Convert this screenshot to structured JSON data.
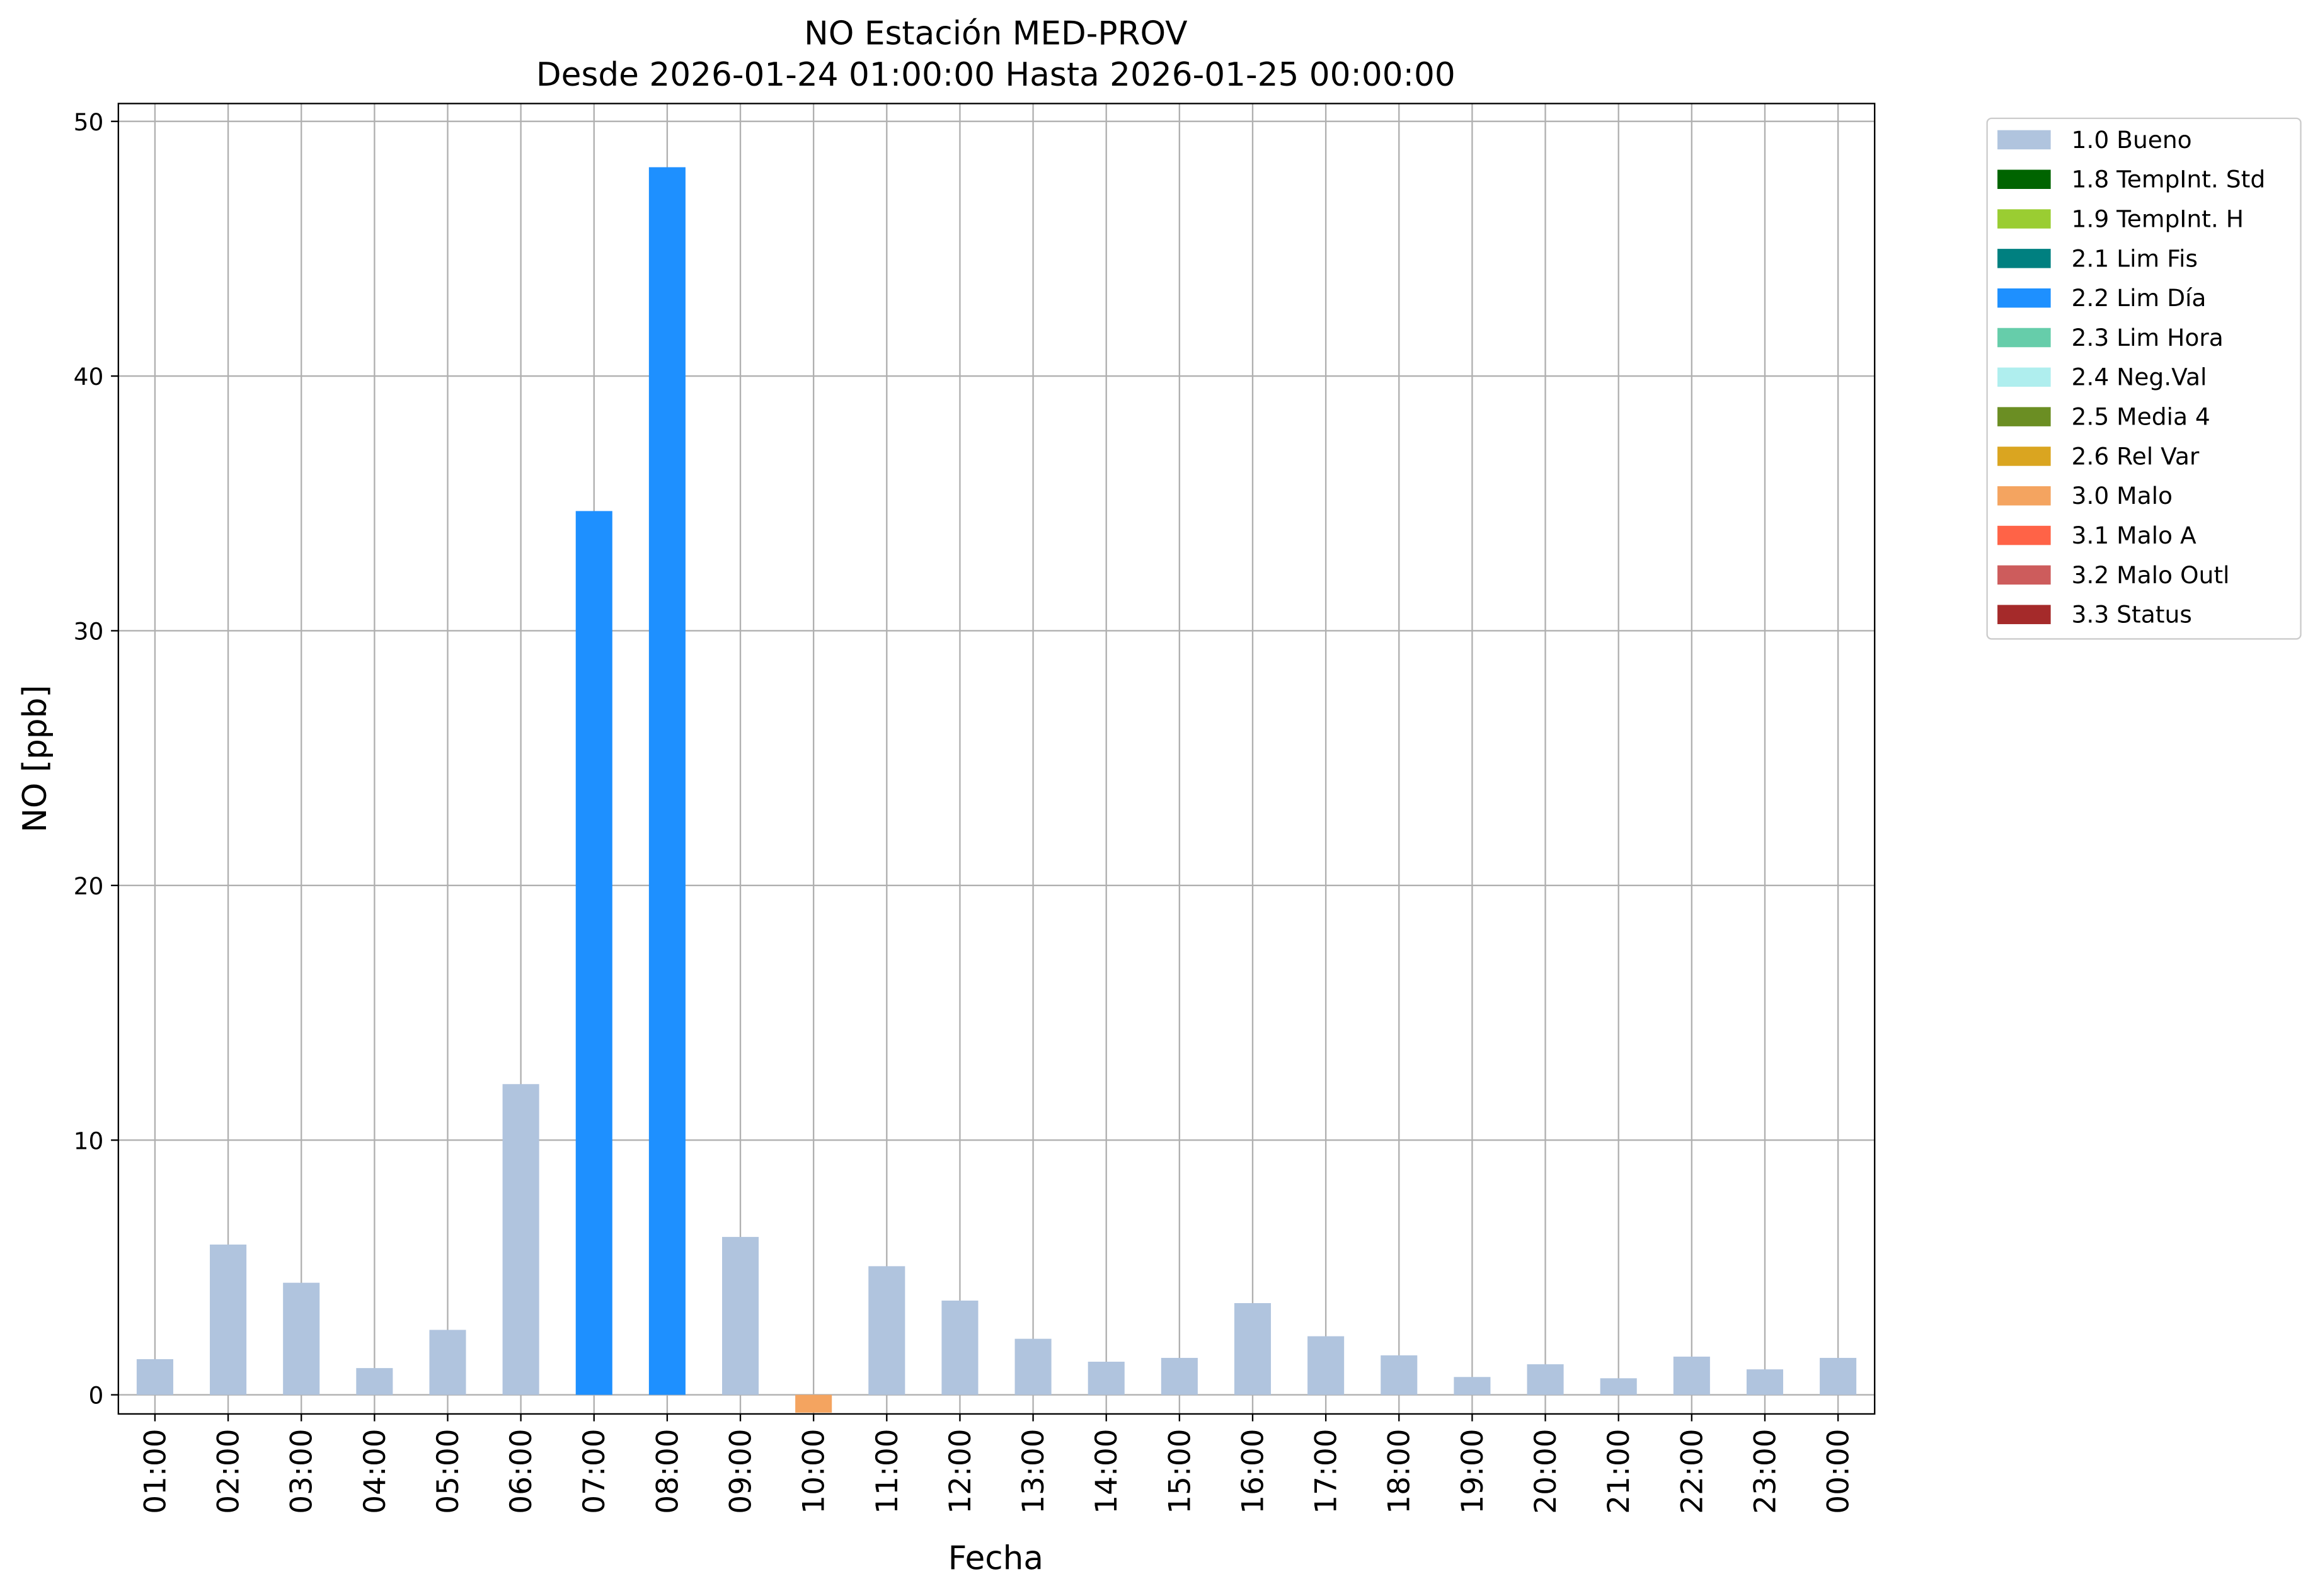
{
  "chart_data": {
    "type": "bar",
    "stacked": true,
    "title": "NO Estación MED-PROV",
    "subtitle": "Desde 2026-01-24 01:00:00 Hasta 2026-01-25 00:00:00",
    "x_label": "Fecha",
    "y_label": "NO [ppb]",
    "categories": [
      "01:00",
      "02:00",
      "03:00",
      "04:00",
      "05:00",
      "06:00",
      "07:00",
      "08:00",
      "09:00",
      "10:00",
      "11:00",
      "12:00",
      "13:00",
      "14:00",
      "15:00",
      "16:00",
      "17:00",
      "18:00",
      "19:00",
      "20:00",
      "21:00",
      "22:00",
      "23:00",
      "00:00"
    ],
    "series": [
      {
        "name": "1.0 Bueno",
        "color": "#b0c4de",
        "values": [
          1.4,
          5.9,
          4.4,
          1.05,
          2.55,
          12.2,
          null,
          null,
          6.2,
          null,
          5.05,
          3.7,
          2.2,
          1.3,
          1.45,
          3.6,
          2.3,
          1.55,
          0.7,
          1.2,
          0.65,
          1.5,
          1.0,
          1.45
        ]
      },
      {
        "name": "1.8 TempInt. Std",
        "color": "#006400",
        "values": [
          null,
          null,
          null,
          null,
          null,
          null,
          null,
          null,
          null,
          null,
          null,
          null,
          null,
          null,
          null,
          null,
          null,
          null,
          null,
          null,
          null,
          null,
          null,
          null
        ]
      },
      {
        "name": "1.9 TempInt. H",
        "color": "#9acd32",
        "values": [
          null,
          null,
          null,
          null,
          null,
          null,
          null,
          null,
          null,
          null,
          null,
          null,
          null,
          null,
          null,
          null,
          null,
          null,
          null,
          null,
          null,
          null,
          null,
          null
        ]
      },
      {
        "name": "2.1 Lim Fis",
        "color": "#008080",
        "values": [
          null,
          null,
          null,
          null,
          null,
          null,
          null,
          null,
          null,
          null,
          null,
          null,
          null,
          null,
          null,
          null,
          null,
          null,
          null,
          null,
          null,
          null,
          null,
          null
        ]
      },
      {
        "name": "2.2 Lim Día",
        "color": "#1e90ff",
        "values": [
          null,
          null,
          null,
          null,
          null,
          null,
          34.7,
          48.2,
          null,
          null,
          null,
          null,
          null,
          null,
          null,
          null,
          null,
          null,
          null,
          null,
          null,
          null,
          null,
          null
        ]
      },
      {
        "name": "2.3 Lim Hora",
        "color": "#66cdaa",
        "values": [
          null,
          null,
          null,
          null,
          null,
          null,
          null,
          null,
          null,
          null,
          null,
          null,
          null,
          null,
          null,
          null,
          null,
          null,
          null,
          null,
          null,
          null,
          null,
          null
        ]
      },
      {
        "name": "2.4 Neg.Val",
        "color": "#afeeee",
        "values": [
          null,
          null,
          null,
          null,
          null,
          null,
          null,
          null,
          null,
          null,
          null,
          null,
          null,
          null,
          null,
          null,
          null,
          null,
          null,
          null,
          null,
          null,
          null,
          null
        ]
      },
      {
        "name": "2.5 Media 4",
        "color": "#6b8e23",
        "values": [
          null,
          null,
          null,
          null,
          null,
          null,
          null,
          null,
          null,
          null,
          null,
          null,
          null,
          null,
          null,
          null,
          null,
          null,
          null,
          null,
          null,
          null,
          null,
          null
        ]
      },
      {
        "name": "2.6 Rel Var",
        "color": "#daa520",
        "values": [
          null,
          null,
          null,
          null,
          null,
          null,
          null,
          null,
          null,
          null,
          null,
          null,
          null,
          null,
          null,
          null,
          null,
          null,
          null,
          null,
          null,
          null,
          null,
          null
        ]
      },
      {
        "name": "3.0 Malo",
        "color": "#f4a460",
        "values": [
          null,
          null,
          null,
          null,
          null,
          null,
          null,
          null,
          null,
          -0.7,
          null,
          null,
          null,
          null,
          null,
          null,
          null,
          null,
          null,
          null,
          null,
          null,
          null,
          null
        ]
      },
      {
        "name": "3.1 Malo A",
        "color": "#ff6347",
        "values": [
          null,
          null,
          null,
          null,
          null,
          null,
          null,
          null,
          null,
          null,
          null,
          null,
          null,
          null,
          null,
          null,
          null,
          null,
          null,
          null,
          null,
          null,
          null,
          null
        ]
      },
      {
        "name": "3.2 Malo Outl",
        "color": "#cd5c5c",
        "values": [
          null,
          null,
          null,
          null,
          null,
          null,
          null,
          null,
          null,
          null,
          null,
          null,
          null,
          null,
          null,
          null,
          null,
          null,
          null,
          null,
          null,
          null,
          null,
          null
        ]
      },
      {
        "name": "3.3 Status",
        "color": "#a52a2a",
        "values": [
          null,
          null,
          null,
          null,
          null,
          null,
          null,
          null,
          null,
          null,
          null,
          null,
          null,
          null,
          null,
          null,
          null,
          null,
          null,
          null,
          null,
          null,
          null,
          null
        ]
      }
    ],
    "ylim": [
      -0.75,
      50.7
    ],
    "yticks": [
      0,
      10,
      20,
      30,
      40,
      50
    ],
    "grid": true,
    "legend": "outside-upper-right"
  }
}
